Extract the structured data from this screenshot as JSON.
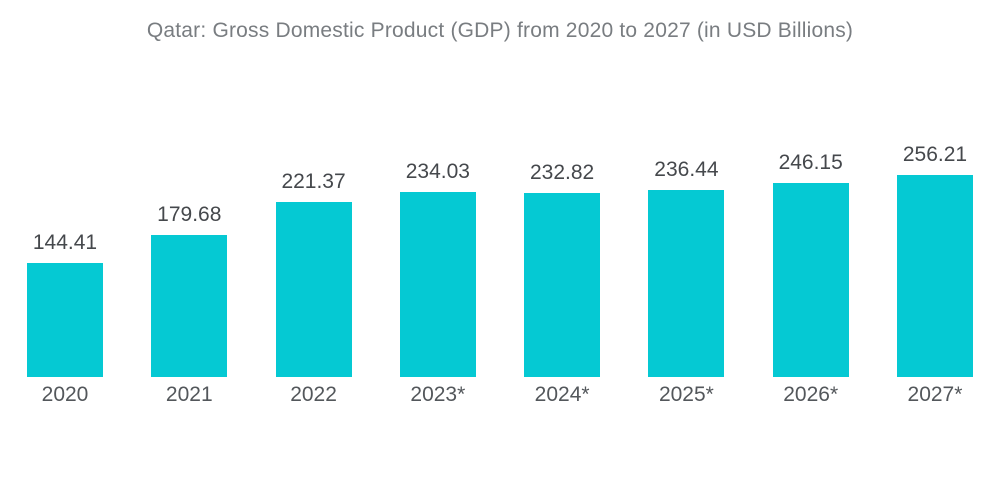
{
  "chart_data": {
    "type": "bar",
    "title": "Qatar: Gross Domestic Product (GDP) from 2020 to 2027 (in USD Billions)",
    "categories": [
      "2020",
      "2021",
      "2022",
      "2023*",
      "2024*",
      "2025*",
      "2026*",
      "2027*"
    ],
    "values": [
      144.41,
      179.68,
      221.37,
      234.03,
      232.82,
      236.44,
      246.15,
      256.21
    ],
    "value_labels": [
      "144.41",
      "179.68",
      "221.37",
      "234.03",
      "232.82",
      "236.44",
      "246.15",
      "256.21"
    ],
    "xlabel": "",
    "ylabel": "",
    "ylim": [
      0,
      260
    ],
    "grid": false,
    "legend": false,
    "data_labels_position": "above-bars",
    "bar_color": "#05c9d3"
  },
  "colors": {
    "background": "#ffffff",
    "bar": "#05c9d3",
    "title_text": "#797d81",
    "value_text": "#45484c",
    "axis_text": "#53575b"
  }
}
